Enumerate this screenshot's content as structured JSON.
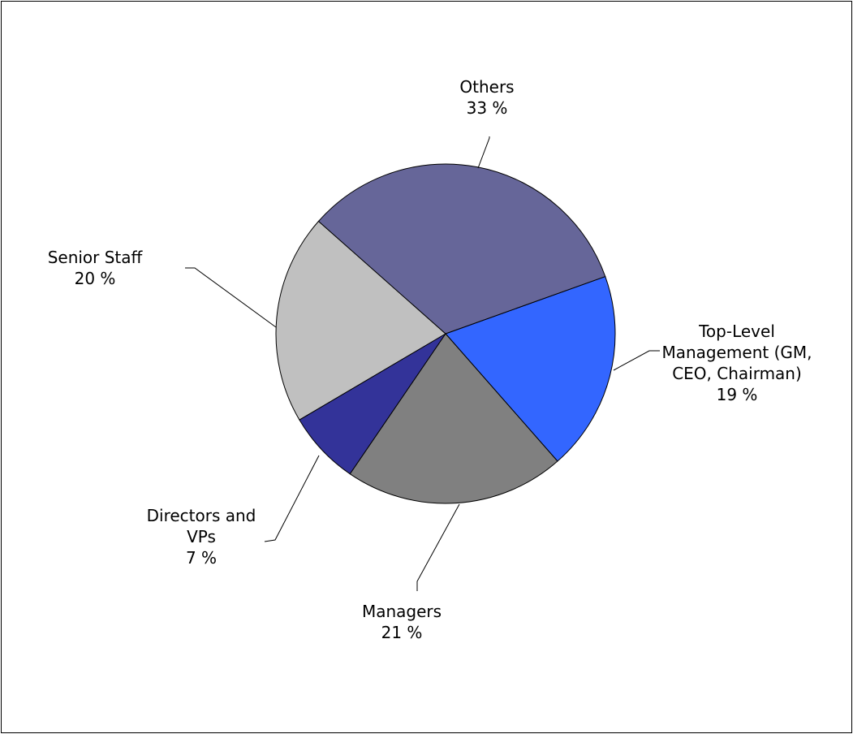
{
  "chart_data": {
    "type": "pie",
    "categories": [
      "Top-Level Management (GM, CEO, Chairman)",
      "Managers",
      "Directors and VPs",
      "Senior Staff",
      "Others"
    ],
    "values": [
      19,
      21,
      7,
      20,
      33
    ],
    "value_labels": [
      "19 %",
      "21 %",
      "7 %",
      "20 %",
      "33 %"
    ],
    "colors": [
      "#3366ff",
      "#808080",
      "#333399",
      "#c0c0c0",
      "#666699"
    ]
  }
}
